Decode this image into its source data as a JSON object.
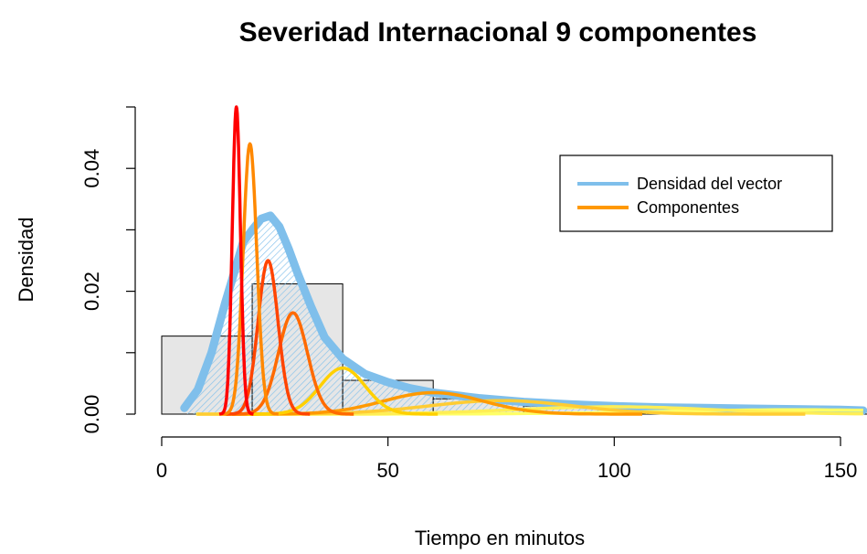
{
  "chart_data": {
    "type": "histogram+density",
    "title": "Severidad Internacional 9 componentes",
    "xlabel": "Tiempo en minutos",
    "ylabel": "Densidad",
    "xlim": [
      0,
      155
    ],
    "ylim": [
      0,
      0.05
    ],
    "x_ticks": [
      0,
      50,
      100,
      150
    ],
    "x_tick_labels": [
      "0",
      "50",
      "100",
      "150"
    ],
    "y_ticks": [
      0,
      0.02,
      0.04
    ],
    "y_tick_labels": [
      "0.00",
      "0.02",
      "0.04"
    ],
    "grid": false,
    "legend_position": "top-right",
    "legend": [
      {
        "label": "Densidad del vector",
        "color": "#7fbfeb"
      },
      {
        "label": "Componentes",
        "color": "#ff9900"
      }
    ],
    "histogram": {
      "color": "#e6e6e6",
      "bins": [
        {
          "x0": 0,
          "x1": 20,
          "density": 0.0127
        },
        {
          "x0": 20,
          "x1": 40,
          "density": 0.0212
        },
        {
          "x0": 40,
          "x1": 60,
          "density": 0.0055
        },
        {
          "x0": 60,
          "x1": 80,
          "density": 0.0025
        },
        {
          "x0": 80,
          "x1": 100,
          "density": 0.0013
        },
        {
          "x0": 100,
          "x1": 120,
          "density": 0.0008
        },
        {
          "x0": 120,
          "x1": 140,
          "density": 0.0005
        },
        {
          "x0": 140,
          "x1": 160,
          "density": 0.0004
        }
      ]
    },
    "density": {
      "color": "#7fbfeb",
      "x": [
        5,
        8,
        11,
        14,
        16,
        18,
        20,
        22,
        24,
        26,
        28,
        30,
        33,
        36,
        40,
        45,
        50,
        55,
        60,
        70,
        80,
        90,
        100,
        110,
        120,
        130,
        140,
        150,
        155
      ],
      "y": [
        0.001,
        0.004,
        0.01,
        0.018,
        0.023,
        0.028,
        0.03,
        0.0318,
        0.0323,
        0.0305,
        0.027,
        0.023,
        0.0175,
        0.0125,
        0.009,
        0.0065,
        0.0052,
        0.0042,
        0.0035,
        0.0026,
        0.002,
        0.0016,
        0.0013,
        0.0011,
        0.001,
        0.0009,
        0.0008,
        0.0007,
        0.0006
      ]
    },
    "components": [
      {
        "color": "#ff0000",
        "mean": 16.5,
        "sd": 0.9,
        "peak": 0.05
      },
      {
        "color": "#ff8800",
        "mean": 19.5,
        "sd": 1.5,
        "peak": 0.044
      },
      {
        "color": "#ff4400",
        "mean": 23.5,
        "sd": 2.2,
        "peak": 0.025
      },
      {
        "color": "#ff6a00",
        "mean": 29,
        "sd": 3.2,
        "peak": 0.0165
      },
      {
        "color": "#ffd000",
        "mean": 40,
        "sd": 5,
        "peak": 0.0075
      },
      {
        "color": "#ff9900",
        "mean": 60,
        "sd": 11,
        "peak": 0.0035
      },
      {
        "color": "#ffcc33",
        "mean": 75,
        "sd": 16,
        "peak": 0.0022
      },
      {
        "color": "#ffee55",
        "mean": 100,
        "sd": 22,
        "peak": 0.0012
      },
      {
        "color": "#ffff66",
        "mean": 140,
        "sd": 30,
        "peak": 0.0007
      }
    ]
  }
}
